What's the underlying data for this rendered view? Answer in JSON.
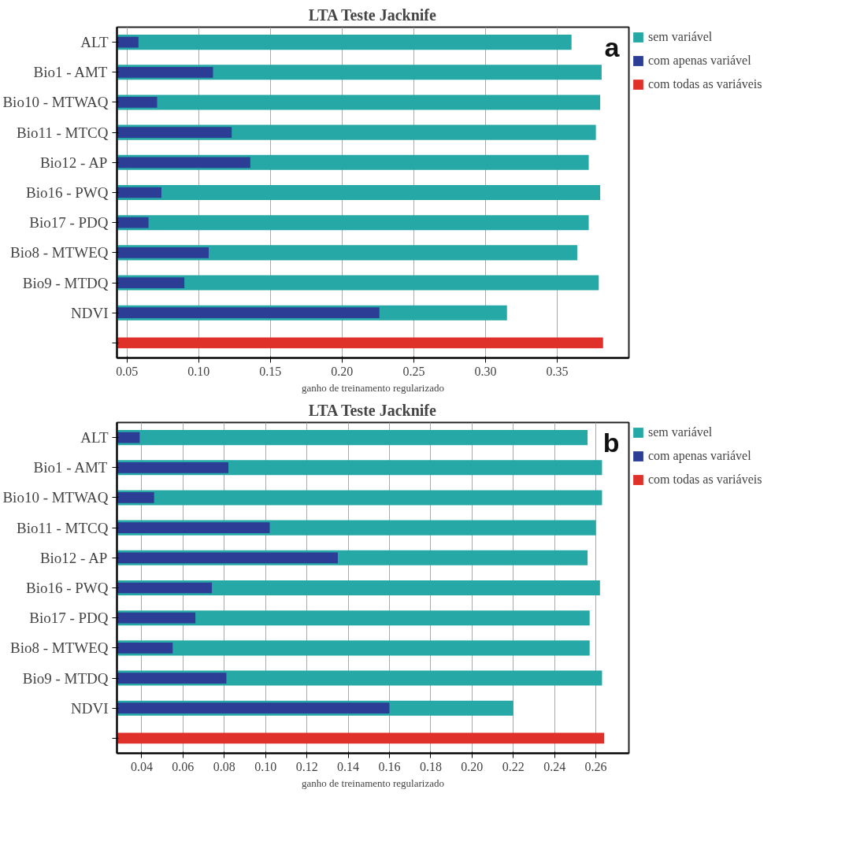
{
  "chart_data": [
    {
      "type": "bar",
      "orientation": "horizontal",
      "title": "LTA Teste Jacknife",
      "xlabel": "ganho de treinamento regularizado",
      "annotations": [
        "a"
      ],
      "categories": [
        "ALT",
        "Bio1 - AMT",
        "Bio10 - MTWAQ",
        "Bio11 - MTCQ",
        "Bio12 - AP",
        "Bio16 - PWQ",
        "Bio17 - PDQ",
        "Bio8 - MTWEQ",
        "Bio9 - MTDQ",
        "NDVI",
        null
      ],
      "series": [
        {
          "name": "sem variável",
          "color": "#26a9a6",
          "values": [
            0.36,
            0.381,
            0.38,
            0.377,
            0.372,
            0.38,
            0.372,
            0.364,
            0.379,
            0.315,
            null
          ]
        },
        {
          "name": "com apenas variável",
          "color": "#2b3d94",
          "values": [
            0.058,
            0.11,
            0.071,
            0.123,
            0.136,
            0.074,
            0.065,
            0.107,
            0.09,
            0.226,
            null
          ]
        },
        {
          "name": "com todas as variáveis",
          "color": "#e0302a",
          "values": [
            null,
            null,
            null,
            null,
            null,
            null,
            null,
            null,
            null,
            null,
            0.382
          ]
        }
      ],
      "xlim": [
        0.043,
        0.4
      ],
      "xticks": [
        {
          "value": 0.05,
          "label": "0.05"
        },
        {
          "value": 0.1,
          "label": "0.10"
        },
        {
          "value": 0.15,
          "label": "0.15"
        },
        {
          "value": 0.2,
          "label": "0.20"
        },
        {
          "value": 0.25,
          "label": "0.25"
        },
        {
          "value": 0.3,
          "label": "0.30"
        },
        {
          "value": 0.35,
          "label": "0.35"
        }
      ],
      "grid": "x",
      "legend": "top right"
    },
    {
      "type": "bar",
      "orientation": "horizontal",
      "title": "LTA Teste Jacknife",
      "xlabel": "ganho de treinamento regularizado",
      "annotations": [
        "b"
      ],
      "categories": [
        "ALT",
        "Bio1 - AMT",
        "Bio10 - MTWAQ",
        "Bio11 - MTCQ",
        "Bio12 - AP",
        "Bio16 - PWQ",
        "Bio17 - PDQ",
        "Bio8 - MTWEQ",
        "Bio9 - MTDQ",
        "NDVI",
        null
      ],
      "series": [
        {
          "name": "sem variável",
          "color": "#26a9a6",
          "values": [
            0.256,
            0.263,
            0.263,
            0.26,
            0.256,
            0.262,
            0.257,
            0.257,
            0.263,
            0.22,
            null
          ]
        },
        {
          "name": "com apenas variável",
          "color": "#2b3d94",
          "values": [
            0.039,
            0.082,
            0.046,
            0.102,
            0.135,
            0.074,
            0.066,
            0.055,
            0.081,
            0.16,
            null
          ]
        },
        {
          "name": "com todas as variáveis",
          "color": "#e0302a",
          "values": [
            null,
            null,
            null,
            null,
            null,
            null,
            null,
            null,
            null,
            null,
            0.264
          ]
        }
      ],
      "xlim": [
        0.028,
        0.276
      ],
      "xticks": [
        {
          "value": 0.04,
          "label": "0.04"
        },
        {
          "value": 0.06,
          "label": "0.06"
        },
        {
          "value": 0.08,
          "label": "0.08"
        },
        {
          "value": 0.1,
          "label": "0.10"
        },
        {
          "value": 0.12,
          "label": "0.12"
        },
        {
          "value": 0.14,
          "label": "0.14"
        },
        {
          "value": 0.16,
          "label": "0.16"
        },
        {
          "value": 0.18,
          "label": "0.18"
        },
        {
          "value": 0.2,
          "label": "0.20"
        },
        {
          "value": 0.22,
          "label": "0.22"
        },
        {
          "value": 0.24,
          "label": "0.24"
        },
        {
          "value": 0.26,
          "label": "0.26"
        }
      ],
      "grid": "x",
      "legend": "top right"
    }
  ]
}
